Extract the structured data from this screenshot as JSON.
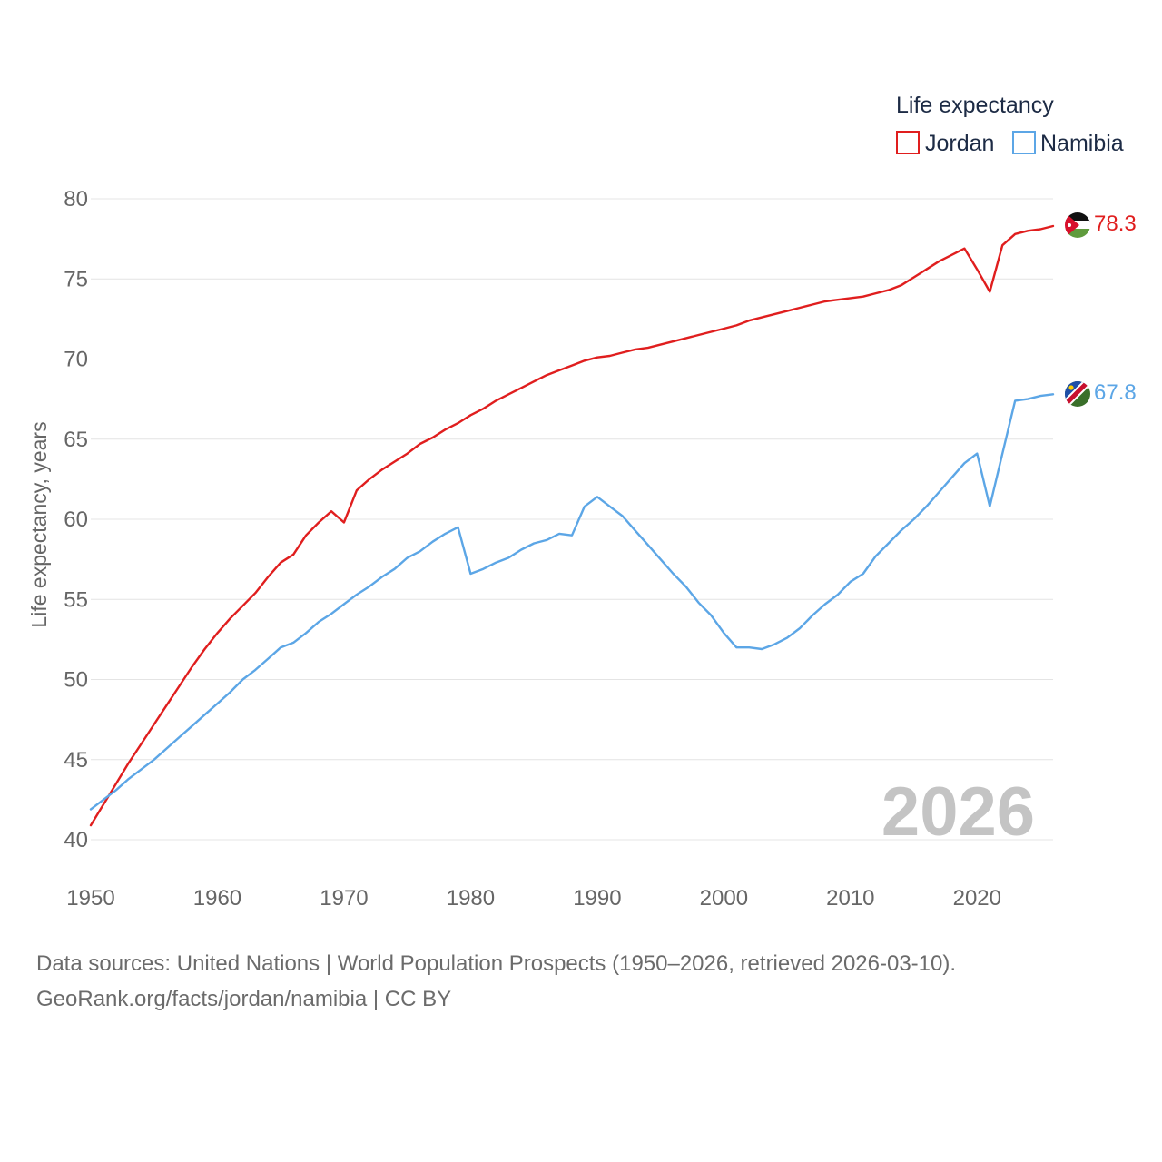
{
  "chart_data": {
    "type": "line",
    "legend": {
      "title": "Life expectancy",
      "position": "top-right"
    },
    "ylabel": "Life expectancy, years",
    "xlabel": "",
    "xlim": [
      1950,
      2026
    ],
    "ylim": [
      40,
      80
    ],
    "yticks": [
      40,
      45,
      50,
      55,
      60,
      65,
      70,
      75,
      80
    ],
    "xticks": [
      1950,
      1960,
      1970,
      1980,
      1990,
      2000,
      2010,
      2020
    ],
    "year_label": "2026",
    "series": [
      {
        "name": "Jordan",
        "color": "#e01e1e",
        "end_label": "78.3",
        "flag": "jordan-flag-icon",
        "x": [
          1950,
          1951,
          1952,
          1953,
          1954,
          1955,
          1956,
          1957,
          1958,
          1959,
          1960,
          1961,
          1962,
          1963,
          1964,
          1965,
          1966,
          1967,
          1968,
          1969,
          1970,
          1971,
          1972,
          1973,
          1974,
          1975,
          1976,
          1977,
          1978,
          1979,
          1980,
          1981,
          1982,
          1983,
          1984,
          1985,
          1986,
          1987,
          1988,
          1989,
          1990,
          1991,
          1992,
          1993,
          1994,
          1995,
          1996,
          1997,
          1998,
          1999,
          2000,
          2001,
          2002,
          2003,
          2004,
          2005,
          2006,
          2007,
          2008,
          2009,
          2010,
          2011,
          2012,
          2013,
          2014,
          2015,
          2016,
          2017,
          2018,
          2019,
          2020,
          2021,
          2022,
          2023,
          2024,
          2025,
          2026
        ],
        "values": [
          40.9,
          42.2,
          43.5,
          44.8,
          46.0,
          47.2,
          48.4,
          49.6,
          50.8,
          51.9,
          52.9,
          53.8,
          54.6,
          55.4,
          56.4,
          57.3,
          57.8,
          59.0,
          59.8,
          60.5,
          59.8,
          61.8,
          62.5,
          63.1,
          63.6,
          64.1,
          64.7,
          65.1,
          65.6,
          66.0,
          66.5,
          66.9,
          67.4,
          67.8,
          68.2,
          68.6,
          69.0,
          69.3,
          69.6,
          69.9,
          70.1,
          70.2,
          70.4,
          70.6,
          70.7,
          70.9,
          71.1,
          71.3,
          71.5,
          71.7,
          71.9,
          72.1,
          72.4,
          72.6,
          72.8,
          73.0,
          73.2,
          73.4,
          73.6,
          73.7,
          73.8,
          73.9,
          74.1,
          74.3,
          74.6,
          75.1,
          75.6,
          76.1,
          76.5,
          76.9,
          75.6,
          74.2,
          77.1,
          77.8,
          78.0,
          78.1,
          78.3
        ]
      },
      {
        "name": "Namibia",
        "color": "#5ca6e6",
        "end_label": "67.8",
        "flag": "namibia-flag-icon",
        "x": [
          1950,
          1951,
          1952,
          1953,
          1954,
          1955,
          1956,
          1957,
          1958,
          1959,
          1960,
          1961,
          1962,
          1963,
          1964,
          1965,
          1966,
          1967,
          1968,
          1969,
          1970,
          1971,
          1972,
          1973,
          1974,
          1975,
          1976,
          1977,
          1978,
          1979,
          1980,
          1981,
          1982,
          1983,
          1984,
          1985,
          1986,
          1987,
          1988,
          1989,
          1990,
          1991,
          1992,
          1993,
          1994,
          1995,
          1996,
          1997,
          1998,
          1999,
          2000,
          2001,
          2002,
          2003,
          2004,
          2005,
          2006,
          2007,
          2008,
          2009,
          2010,
          2011,
          2012,
          2013,
          2014,
          2015,
          2016,
          2017,
          2018,
          2019,
          2020,
          2021,
          2022,
          2023,
          2024,
          2025,
          2026
        ],
        "values": [
          41.9,
          42.5,
          43.1,
          43.8,
          44.4,
          45.0,
          45.7,
          46.4,
          47.1,
          47.8,
          48.5,
          49.2,
          50.0,
          50.6,
          51.3,
          52.0,
          52.3,
          52.9,
          53.6,
          54.1,
          54.7,
          55.3,
          55.8,
          56.4,
          56.9,
          57.6,
          58.0,
          58.6,
          59.1,
          59.5,
          56.6,
          56.9,
          57.3,
          57.6,
          58.1,
          58.5,
          58.7,
          59.1,
          59.0,
          60.8,
          61.4,
          60.8,
          60.2,
          59.3,
          58.4,
          57.5,
          56.6,
          55.8,
          54.8,
          54.0,
          52.9,
          52.0,
          52.0,
          51.9,
          52.2,
          52.6,
          53.2,
          54.0,
          54.7,
          55.3,
          56.1,
          56.6,
          57.7,
          58.5,
          59.3,
          60.0,
          60.8,
          61.7,
          62.6,
          63.5,
          64.1,
          60.8,
          64.1,
          67.4,
          67.5,
          67.7,
          67.8
        ]
      }
    ]
  },
  "footer": {
    "sources": "Data sources: United Nations | World Population Prospects (1950–2026, retrieved 2026-03-10).",
    "site": "GeoRank.org/facts/jordan/namibia | CC BY"
  }
}
